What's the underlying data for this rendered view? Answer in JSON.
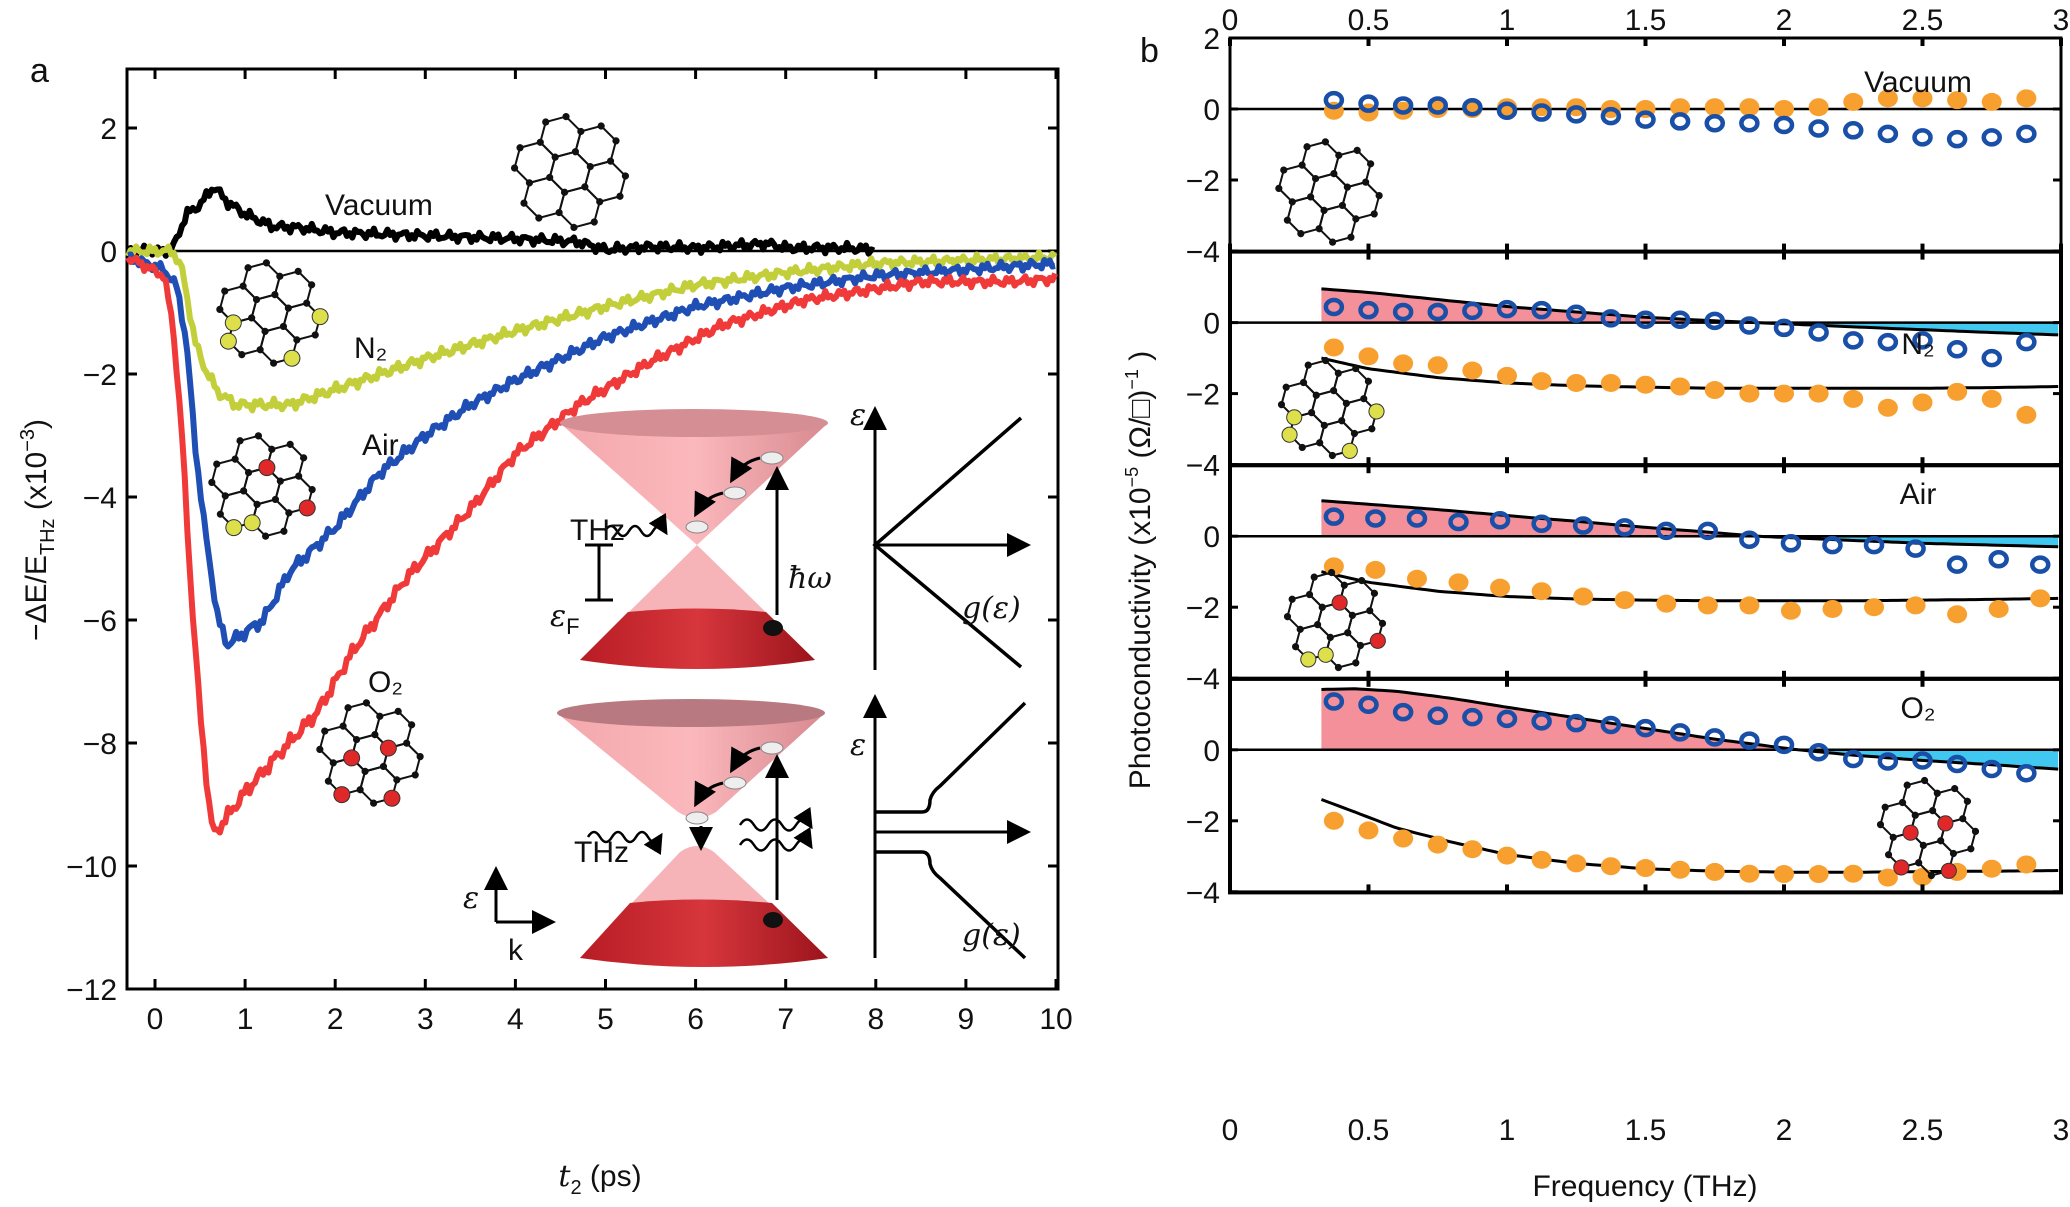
{
  "colors": {
    "vacuum": "#000000",
    "n2": "#c3cf3a",
    "air": "#1f4fb5",
    "o2": "#f03a3a",
    "re_marker": "#1a4fa8",
    "im_marker": "#f7a030",
    "pos_fill": "#f4909a",
    "neg_fill": "#40c8f0"
  },
  "chart_data": [
    {
      "panel_label": "a",
      "type": "line",
      "xlabel": {
        "t": "t",
        "sub": "2",
        "unit": " (ps)"
      },
      "ylabel": {
        "main": "−ΔE/E",
        "sub": "THz",
        "unit": " (x10",
        "sup": "−3",
        "close": ")"
      },
      "xlim": [
        -0.3,
        10
      ],
      "ylim": [
        -12,
        3
      ],
      "xticks": [
        0,
        1,
        2,
        3,
        4,
        5,
        6,
        7,
        8,
        9,
        10
      ],
      "yticks": [
        2,
        0,
        -2,
        -4,
        -6,
        -8,
        -10,
        -12
      ],
      "ytick_labels": [
        "2",
        "0",
        "−2",
        "−4",
        "−6",
        "−8",
        "−10",
        "−12"
      ],
      "series": [
        {
          "name": "Vacuum",
          "color_key": "vacuum",
          "x": [
            -0.3,
            0.1,
            0.2,
            0.35,
            0.5,
            0.65,
            0.8,
            1.0,
            1.3,
            1.6,
            2.0,
            3.0,
            4.0,
            4.7,
            5.0,
            5.5,
            6.0,
            6.8,
            7.0,
            7.5,
            8.0
          ],
          "y": [
            0,
            0,
            0.05,
            0.6,
            0.75,
            1.05,
            0.8,
            0.6,
            0.4,
            0.38,
            0.3,
            0.25,
            0.2,
            0.15,
            0.02,
            0.07,
            0.05,
            0.12,
            0.05,
            0.05,
            0.03
          ]
        },
        {
          "name": "N₂",
          "color_key": "n2",
          "x": [
            -0.3,
            0.2,
            0.3,
            0.45,
            0.55,
            0.7,
            0.9,
            1.2,
            1.5,
            2.0,
            2.5,
            3.0,
            4.0,
            5.0,
            6.0,
            7.0,
            8.0,
            9.0,
            10.0
          ],
          "y": [
            0,
            0,
            -0.3,
            -1.5,
            -1.9,
            -2.3,
            -2.5,
            -2.5,
            -2.5,
            -2.25,
            -2.0,
            -1.75,
            -1.3,
            -0.9,
            -0.55,
            -0.35,
            -0.2,
            -0.15,
            -0.1
          ]
        },
        {
          "name": "Air",
          "color_key": "air",
          "x": [
            -0.3,
            0.1,
            0.25,
            0.35,
            0.45,
            0.55,
            0.7,
            0.8,
            1.0,
            1.2,
            1.5,
            2.0,
            2.5,
            3.0,
            3.5,
            4.0,
            5.0,
            6.0,
            7.0,
            8.0,
            9.0,
            10.0
          ],
          "y": [
            -0.1,
            -0.3,
            -0.6,
            -1.5,
            -3.2,
            -4.5,
            -6.0,
            -6.4,
            -6.2,
            -6.0,
            -5.2,
            -4.5,
            -3.6,
            -3.0,
            -2.5,
            -2.1,
            -1.4,
            -0.9,
            -0.6,
            -0.4,
            -0.3,
            -0.2
          ]
        },
        {
          "name": "O₂",
          "color_key": "o2",
          "x": [
            -0.3,
            0.1,
            0.2,
            0.3,
            0.4,
            0.5,
            0.6,
            0.65,
            0.8,
            1.0,
            1.3,
            1.8,
            2.2,
            2.8,
            3.5,
            4.0,
            4.7,
            5.5,
            6.3,
            7.2,
            8.5,
            9.5,
            10.0
          ],
          "y": [
            -0.1,
            -0.4,
            -1.2,
            -3.0,
            -5.5,
            -7.5,
            -9.0,
            -9.5,
            -9.2,
            -8.8,
            -8.3,
            -7.5,
            -6.5,
            -5.3,
            -4.2,
            -3.3,
            -2.5,
            -1.8,
            -1.2,
            -0.8,
            -0.5,
            -0.5,
            -0.45
          ]
        }
      ],
      "curve_labels": [
        "Vacuum",
        "N₂",
        "Air",
        "O₂"
      ],
      "inset": {
        "thz": "THz",
        "hbar_omega": "ħω",
        "eps_f": "ε",
        "eps_f_sub": "F",
        "g_eps": "g(ε)",
        "eps": "ε",
        "k": "k"
      }
    },
    {
      "panel_label": "b",
      "type": "scatter",
      "xlabel": "Frequency (THz)",
      "ylabel": {
        "main": "Photoconductivity (x10",
        "sup": "−5",
        "unit": " (Ω/□)",
        "sup2": "−1",
        "close": " )"
      },
      "xlim": [
        0,
        3
      ],
      "ylim_each_panel": [
        -4,
        2
      ],
      "xticks": [
        0,
        0.5,
        1,
        1.5,
        2,
        2.5,
        3
      ],
      "xtick_labels": [
        "0",
        "0.5",
        "1",
        "1.5",
        "2",
        "2.5",
        "3"
      ],
      "yticks": [
        2,
        0,
        -2,
        -4
      ],
      "ytick_labels": [
        "2",
        "0",
        "−2",
        "−4"
      ],
      "panels": [
        {
          "name": "Vacuum",
          "x": [
            0.375,
            0.5,
            0.625,
            0.75,
            0.875,
            1.0,
            1.125,
            1.25,
            1.375,
            1.5,
            1.625,
            1.75,
            1.875,
            2.0,
            2.125,
            2.25,
            2.375,
            2.5,
            2.625,
            2.75,
            2.875
          ],
          "re": [
            0.25,
            0.15,
            0.1,
            0.1,
            0.05,
            -0.05,
            -0.1,
            -0.15,
            -0.2,
            -0.3,
            -0.35,
            -0.4,
            -0.4,
            -0.45,
            -0.55,
            -0.6,
            -0.7,
            -0.8,
            -0.85,
            -0.8,
            -0.7
          ],
          "im": [
            -0.05,
            -0.1,
            -0.05,
            0,
            0,
            0.05,
            0.05,
            0.05,
            0,
            0,
            0.05,
            0.05,
            0.05,
            0,
            0.05,
            0.2,
            0.3,
            0.3,
            0.25,
            0.2,
            0.3
          ],
          "fit_re": null,
          "fit_im": null
        },
        {
          "name": "N₂",
          "x": [
            0.375,
            0.5,
            0.625,
            0.75,
            0.875,
            1.0,
            1.125,
            1.25,
            1.375,
            1.5,
            1.625,
            1.75,
            1.875,
            2.0,
            2.125,
            2.25,
            2.375,
            2.5,
            2.625,
            2.75,
            2.875
          ],
          "re": [
            0.44,
            0.35,
            0.3,
            0.3,
            0.33,
            0.38,
            0.35,
            0.25,
            0.12,
            0.08,
            0.08,
            0.05,
            -0.08,
            -0.15,
            -0.28,
            -0.5,
            -0.55,
            -0.5,
            -0.75,
            -1.0,
            -0.55
          ],
          "im": [
            -0.7,
            -0.95,
            -1.15,
            -1.2,
            -1.35,
            -1.5,
            -1.65,
            -1.7,
            -1.7,
            -1.75,
            -1.8,
            -1.9,
            -2.0,
            -2.0,
            -2.0,
            -2.15,
            -2.4,
            -2.25,
            -1.95,
            -2.15,
            -2.6
          ],
          "fit_x": [
            0.33,
            0.5,
            0.75,
            1.0,
            1.25,
            1.5,
            1.75,
            1.9,
            2.25,
            2.5,
            2.75,
            3.0
          ],
          "fit_re": [
            0.95,
            0.85,
            0.65,
            0.45,
            0.3,
            0.15,
            0.05,
            0,
            -0.12,
            -0.2,
            -0.28,
            -0.35
          ],
          "fit_im": [
            -1.0,
            -1.3,
            -1.55,
            -1.7,
            -1.78,
            -1.82,
            -1.85,
            -1.85,
            -1.85,
            -1.85,
            -1.83,
            -1.8
          ]
        },
        {
          "name": "Air",
          "x": [
            0.375,
            0.525,
            0.675,
            0.825,
            0.975,
            1.125,
            1.275,
            1.425,
            1.575,
            1.725,
            1.875,
            2.025,
            2.175,
            2.325,
            2.475,
            2.625,
            2.775,
            2.925
          ],
          "re": [
            0.55,
            0.5,
            0.5,
            0.4,
            0.45,
            0.35,
            0.3,
            0.25,
            0.15,
            0.15,
            -0.1,
            -0.2,
            -0.25,
            -0.25,
            -0.35,
            -0.8,
            -0.65,
            -0.8
          ],
          "im": [
            -0.85,
            -0.95,
            -1.2,
            -1.3,
            -1.45,
            -1.55,
            -1.7,
            -1.8,
            -1.9,
            -1.95,
            -1.95,
            -2.1,
            -2.05,
            -2.0,
            -1.95,
            -2.2,
            -2.05,
            -1.75
          ],
          "fit_x": [
            0.33,
            0.5,
            0.75,
            1.0,
            1.25,
            1.5,
            1.75,
            1.9,
            2.25,
            2.5,
            2.75,
            3.0
          ],
          "fit_re": [
            1.0,
            0.9,
            0.75,
            0.58,
            0.42,
            0.25,
            0.1,
            0,
            -0.12,
            -0.2,
            -0.25,
            -0.3
          ],
          "fit_im": [
            -1.0,
            -1.3,
            -1.55,
            -1.7,
            -1.77,
            -1.8,
            -1.82,
            -1.82,
            -1.82,
            -1.8,
            -1.78,
            -1.75
          ]
        },
        {
          "name": "O₂",
          "x": [
            0.375,
            0.5,
            0.625,
            0.75,
            0.875,
            1.0,
            1.125,
            1.25,
            1.375,
            1.5,
            1.625,
            1.75,
            1.875,
            2.0,
            2.125,
            2.25,
            2.375,
            2.5,
            2.625,
            2.75,
            2.875
          ],
          "re": [
            1.36,
            1.27,
            1.06,
            0.96,
            0.92,
            0.87,
            0.8,
            0.75,
            0.7,
            0.61,
            0.49,
            0.35,
            0.26,
            0.14,
            -0.07,
            -0.26,
            -0.33,
            -0.3,
            -0.4,
            -0.54,
            -0.66
          ],
          "im": [
            -2.0,
            -2.27,
            -2.5,
            -2.67,
            -2.8,
            -2.98,
            -3.1,
            -3.2,
            -3.28,
            -3.33,
            -3.38,
            -3.44,
            -3.49,
            -3.5,
            -3.5,
            -3.49,
            -3.6,
            -3.58,
            -3.44,
            -3.35,
            -3.23
          ],
          "fit_x": [
            0.33,
            0.45,
            0.6,
            0.8,
            1.0,
            1.25,
            1.5,
            1.75,
            2.05,
            2.25,
            2.5,
            2.75,
            3.0
          ],
          "fit_re": [
            1.7,
            1.72,
            1.65,
            1.45,
            1.2,
            0.9,
            0.6,
            0.3,
            0,
            -0.15,
            -0.3,
            -0.42,
            -0.55
          ],
          "fit_im": [
            -1.4,
            -1.75,
            -2.2,
            -2.6,
            -2.95,
            -3.2,
            -3.35,
            -3.42,
            -3.45,
            -3.45,
            -3.43,
            -3.42,
            -3.4
          ]
        }
      ]
    }
  ]
}
